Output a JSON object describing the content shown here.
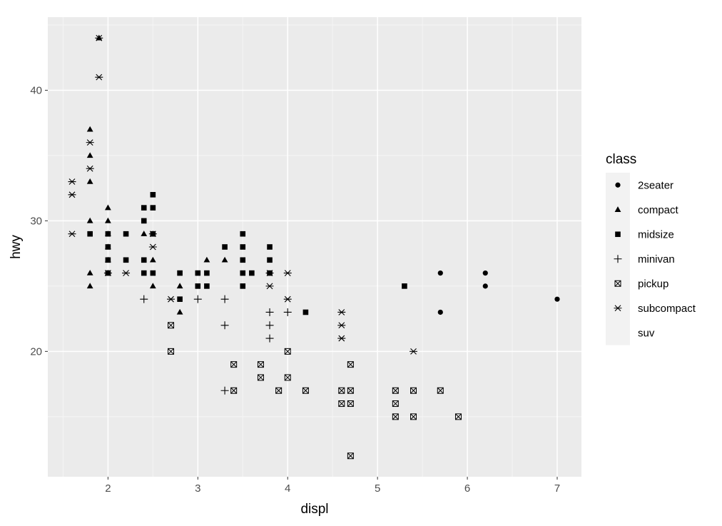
{
  "chart_data": {
    "type": "scatter",
    "title": "",
    "xlabel": "displ",
    "ylabel": "hwy",
    "xlim": [
      1.33,
      7.27
    ],
    "ylim": [
      10.4,
      45.6
    ],
    "x_ticks": [
      2,
      3,
      4,
      5,
      6,
      7
    ],
    "y_ticks": [
      20,
      30,
      40
    ],
    "grid": true,
    "legend": {
      "title": "class",
      "position": "right",
      "entries": [
        "2seater",
        "compact",
        "midsize",
        "minivan",
        "pickup",
        "subcompact",
        "suv"
      ]
    },
    "colors": {
      "panel": "#ebebeb",
      "grid_major": "#ffffff",
      "point": "#000000",
      "legend_key_bg": "#f2f2f2"
    },
    "series": [
      {
        "name": "2seater",
        "shape": "circle",
        "points": [
          [
            5.7,
            26
          ],
          [
            5.7,
            23
          ],
          [
            6.2,
            26
          ],
          [
            6.2,
            25
          ],
          [
            7.0,
            24
          ]
        ]
      },
      {
        "name": "compact",
        "shape": "triangle",
        "points": [
          [
            1.8,
            37
          ],
          [
            1.8,
            35
          ],
          [
            1.8,
            33
          ],
          [
            1.8,
            30
          ],
          [
            1.8,
            26
          ],
          [
            1.8,
            25
          ],
          [
            2.0,
            31
          ],
          [
            2.0,
            30
          ],
          [
            2.0,
            29
          ],
          [
            2.0,
            28
          ],
          [
            2.0,
            27
          ],
          [
            2.0,
            26
          ],
          [
            2.4,
            29
          ],
          [
            2.5,
            29
          ],
          [
            2.5,
            27
          ],
          [
            2.5,
            25
          ],
          [
            2.8,
            25
          ],
          [
            2.8,
            23
          ],
          [
            3.1,
            27
          ],
          [
            3.3,
            27
          ],
          [
            1.9,
            44
          ]
        ]
      },
      {
        "name": "midsize",
        "shape": "square",
        "points": [
          [
            1.8,
            29
          ],
          [
            2.0,
            29
          ],
          [
            2.0,
            28
          ],
          [
            2.0,
            27
          ],
          [
            2.0,
            26
          ],
          [
            2.2,
            29
          ],
          [
            2.2,
            27
          ],
          [
            2.4,
            31
          ],
          [
            2.4,
            30
          ],
          [
            2.4,
            27
          ],
          [
            2.4,
            26
          ],
          [
            2.5,
            32
          ],
          [
            2.5,
            31
          ],
          [
            2.5,
            29
          ],
          [
            2.5,
            26
          ],
          [
            2.8,
            26
          ],
          [
            2.8,
            24
          ],
          [
            3.0,
            26
          ],
          [
            3.0,
            25
          ],
          [
            3.1,
            26
          ],
          [
            3.1,
            25
          ],
          [
            3.3,
            28
          ],
          [
            3.5,
            29
          ],
          [
            3.5,
            28
          ],
          [
            3.5,
            27
          ],
          [
            3.5,
            26
          ],
          [
            3.5,
            25
          ],
          [
            3.6,
            26
          ],
          [
            3.8,
            28
          ],
          [
            3.8,
            27
          ],
          [
            3.8,
            26
          ],
          [
            4.2,
            23
          ],
          [
            5.3,
            25
          ]
        ]
      },
      {
        "name": "minivan",
        "shape": "plus",
        "points": [
          [
            2.4,
            24
          ],
          [
            3.0,
            24
          ],
          [
            3.3,
            24
          ],
          [
            3.3,
            22
          ],
          [
            3.3,
            17
          ],
          [
            3.8,
            23
          ],
          [
            3.8,
            22
          ],
          [
            3.8,
            21
          ],
          [
            4.0,
            23
          ]
        ]
      },
      {
        "name": "pickup",
        "shape": "square-cross",
        "points": [
          [
            2.7,
            22
          ],
          [
            2.7,
            20
          ],
          [
            3.4,
            19
          ],
          [
            3.4,
            17
          ],
          [
            3.7,
            19
          ],
          [
            3.7,
            18
          ],
          [
            3.9,
            17
          ],
          [
            4.0,
            20
          ],
          [
            4.0,
            18
          ],
          [
            4.2,
            17
          ],
          [
            4.6,
            17
          ],
          [
            4.6,
            16
          ],
          [
            4.7,
            19
          ],
          [
            4.7,
            17
          ],
          [
            4.7,
            16
          ],
          [
            4.7,
            12
          ],
          [
            5.2,
            17
          ],
          [
            5.2,
            16
          ],
          [
            5.2,
            15
          ],
          [
            5.4,
            17
          ],
          [
            5.4,
            15
          ],
          [
            5.7,
            17
          ],
          [
            5.9,
            15
          ]
        ]
      },
      {
        "name": "subcompact",
        "shape": "asterisk",
        "points": [
          [
            1.6,
            33
          ],
          [
            1.6,
            32
          ],
          [
            1.6,
            29
          ],
          [
            1.8,
            36
          ],
          [
            1.8,
            34
          ],
          [
            1.9,
            44
          ],
          [
            1.9,
            41
          ],
          [
            2.0,
            26
          ],
          [
            2.2,
            26
          ],
          [
            2.5,
            29
          ],
          [
            2.5,
            28
          ],
          [
            2.7,
            24
          ],
          [
            3.8,
            26
          ],
          [
            3.8,
            25
          ],
          [
            4.0,
            26
          ],
          [
            4.0,
            24
          ],
          [
            4.6,
            23
          ],
          [
            4.6,
            22
          ],
          [
            4.6,
            21
          ],
          [
            5.4,
            20
          ]
        ]
      },
      {
        "name": "suv",
        "shape": "none",
        "points": []
      }
    ]
  }
}
